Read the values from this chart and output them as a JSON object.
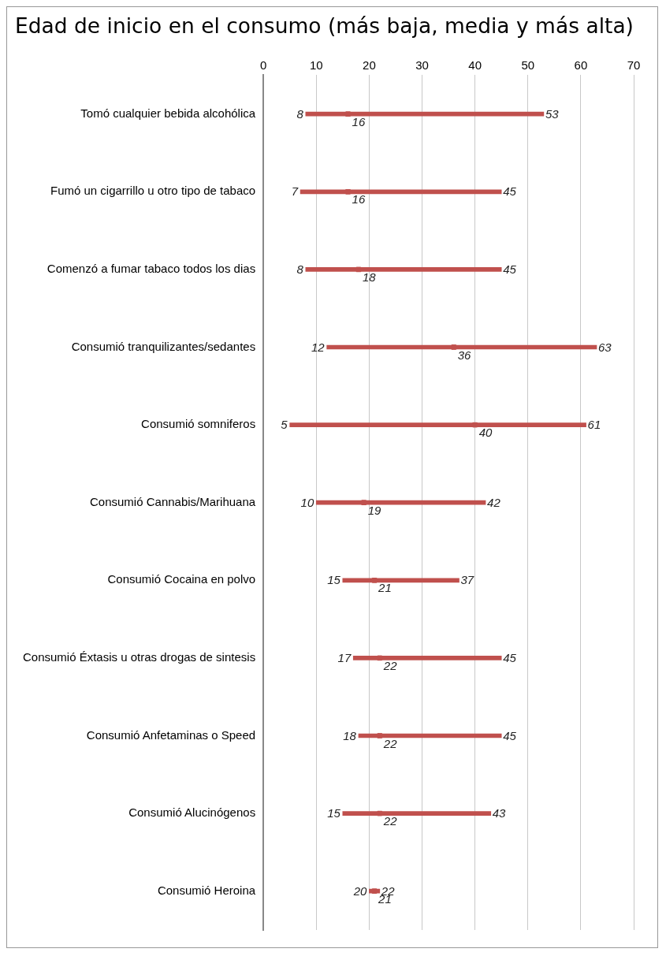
{
  "chart_data": {
    "type": "bar",
    "orientation": "horizontal",
    "title": "Edad de inicio en el consumo (más baja, media y más alta)",
    "categories": [
      "Tomó cualquier bebida alcohólica",
      "Fumó un cigarrillo u otro tipo de tabaco",
      "Comenzó a fumar tabaco todos los dias",
      "Consumió tranquilizantes/sedantes",
      "Consumió somniferos",
      "Consumió Cannabis/Marihuana",
      "Consumió Cocaina en polvo",
      "Consumió Éxtasis u otras drogas de sintesis",
      "Consumió Anfetaminas o Speed",
      "Consumió Alucinógenos",
      "Consumió Heroina"
    ],
    "series": [
      {
        "color": "#c0504d",
        "base": [
          8,
          7,
          8,
          12,
          5,
          10,
          15,
          17,
          18,
          15,
          20
        ],
        "values": [
          45,
          38,
          37,
          51,
          56,
          32,
          22,
          28,
          27,
          28,
          2
        ],
        "value_labels": [
          "53",
          "45",
          "45",
          "63",
          "61",
          "42",
          "37",
          "45",
          "45",
          "43",
          "22"
        ]
      },
      {
        "type": "scatter",
        "color": "#c0504d",
        "marker": "square",
        "values": [
          16,
          16,
          18,
          36,
          40,
          19,
          21,
          22,
          22,
          22,
          21
        ],
        "data_labels": true
      }
    ],
    "annotations": [
      {
        "text": "8",
        "x": 8,
        "y": "Tomó cualquier bebida alcohólica"
      },
      {
        "text": "7",
        "x": 7,
        "y": "Fumó un cigarrillo u otro tipo de tabaco"
      },
      {
        "text": "8",
        "x": 8,
        "y": "Comenzó a fumar tabaco todos los dias"
      },
      {
        "text": "12",
        "x": 12,
        "y": "Consumió tranquilizantes/sedantes"
      },
      {
        "text": "5",
        "x": 5,
        "y": "Consumió somniferos"
      },
      {
        "text": "10",
        "x": 10,
        "y": "Consumió Cannabis/Marihuana"
      },
      {
        "text": "15",
        "x": 15,
        "y": "Consumió Cocaina en polvo"
      },
      {
        "text": "17",
        "x": 17,
        "y": "Consumió Éxtasis u otras drogas de sintesis"
      },
      {
        "text": "18",
        "x": 18,
        "y": "Consumió Anfetaminas o Speed"
      },
      {
        "text": "15",
        "x": 15,
        "y": "Consumió Alucinógenos"
      },
      {
        "text": "20",
        "x": 20,
        "y": "Consumió Heroina"
      }
    ],
    "xlim": [
      0,
      70
    ],
    "xticks": [
      0,
      10,
      20,
      30,
      40,
      50,
      60,
      70
    ],
    "grid": "x",
    "legend": false
  }
}
